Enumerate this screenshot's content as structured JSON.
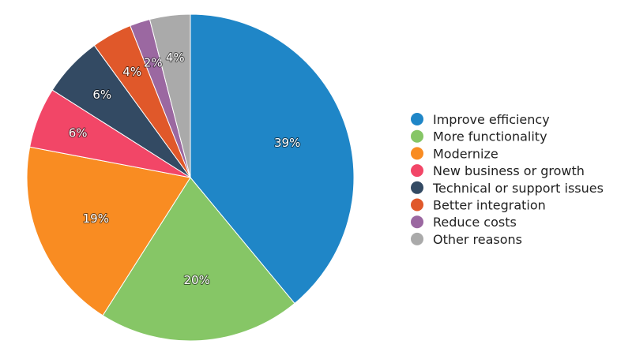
{
  "chart_data": {
    "type": "pie",
    "slices": [
      {
        "label": "Improve efficiency",
        "value": 39,
        "display": "39%",
        "color": "#1f86c7"
      },
      {
        "label": "More functionality",
        "value": 20,
        "display": "20%",
        "color": "#86c666"
      },
      {
        "label": "Modernize",
        "value": 19,
        "display": "19%",
        "color": "#f98c22"
      },
      {
        "label": "New business or growth",
        "value": 6,
        "display": "6%",
        "color": "#f24667"
      },
      {
        "label": "Technical or support issues",
        "value": 6,
        "display": "6%",
        "color": "#334a63"
      },
      {
        "label": "Better integration",
        "value": 4,
        "display": "4%",
        "color": "#e0582a"
      },
      {
        "label": "Reduce costs",
        "value": 2,
        "display": "2%",
        "color": "#9b68a1"
      },
      {
        "label": "Other reasons",
        "value": 4,
        "display": "4%",
        "color": "#aaaaaa"
      }
    ],
    "legend_position": "right",
    "direction": "clockwise",
    "start_angle": "top"
  }
}
